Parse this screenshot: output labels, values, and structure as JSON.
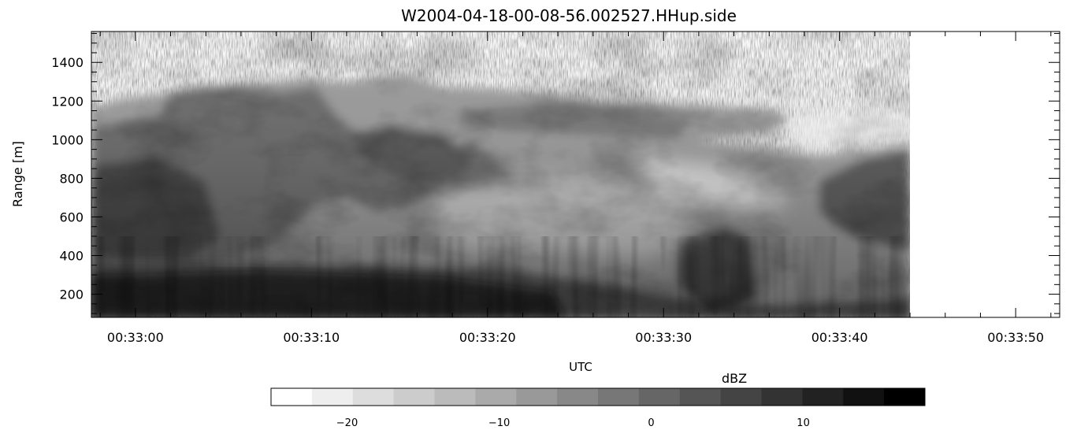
{
  "title": "W2004-04-18-00-08-56.002527.HHup.side",
  "chart_data": {
    "type": "heatmap",
    "title": "W2004-04-18-00-08-56.002527.HHup.side",
    "xlabel": "UTC",
    "ylabel": "Range [m]",
    "x_ticks": [
      "00:33:00",
      "00:33:10",
      "00:33:20",
      "00:33:30",
      "00:33:40",
      "00:33:50"
    ],
    "x_tick_seconds": [
      0,
      10,
      20,
      30,
      40,
      50
    ],
    "xlim_seconds": [
      -2.5,
      52.5
    ],
    "data_end_seconds": 33.1,
    "y_ticks": [
      200,
      400,
      600,
      800,
      1000,
      1200,
      1400
    ],
    "ylim": [
      80,
      1560
    ],
    "colorbar": {
      "label": "dBZ",
      "ticks": [
        -20,
        -10,
        0,
        10
      ],
      "range": [
        -25,
        18
      ],
      "levels": 16,
      "colormap": "white-to-black grayscale"
    }
  }
}
